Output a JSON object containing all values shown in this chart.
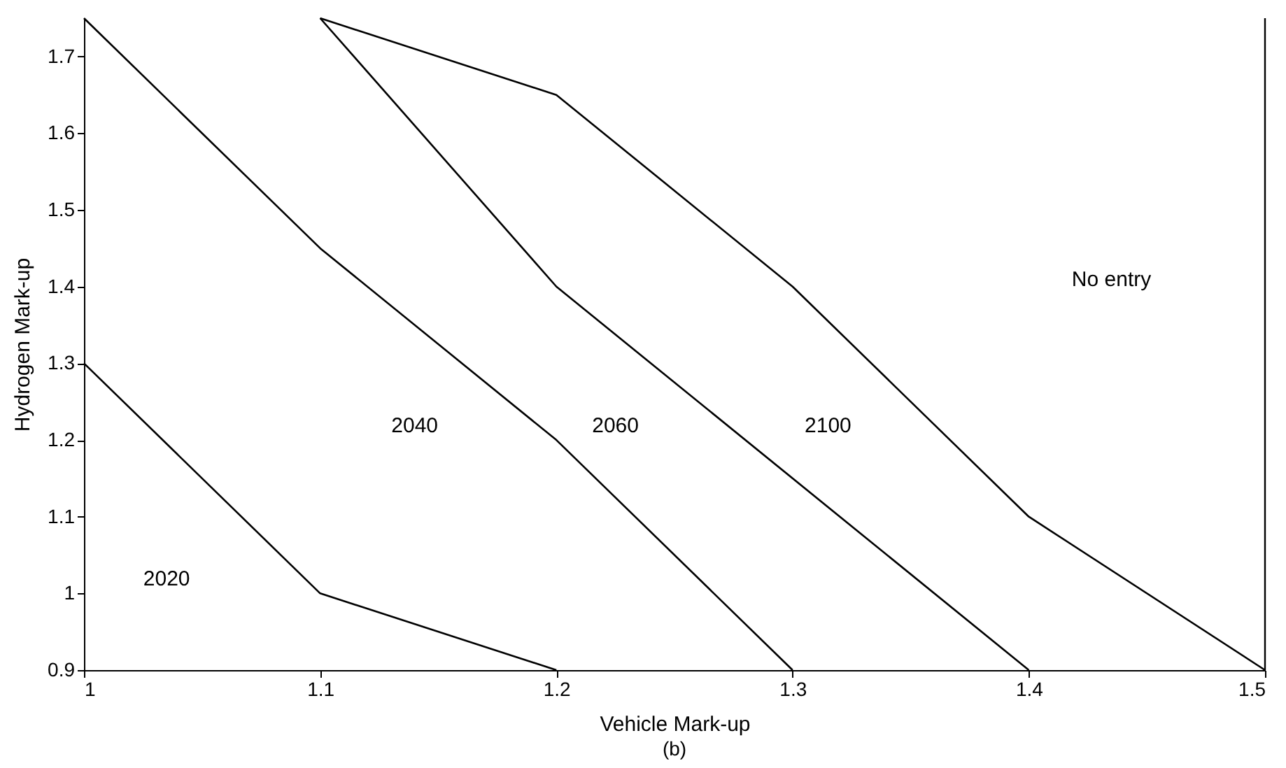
{
  "chart_data": {
    "type": "line",
    "xlabel": "Vehicle Mark-up",
    "ylabel": "Hydrogen Mark-up",
    "xlim": [
      1,
      1.5
    ],
    "xticks": [
      1,
      1.1,
      1.2,
      1.3,
      1.4,
      1.5
    ],
    "ylim": [
      0.9,
      1.75
    ],
    "yticks": [
      0.9,
      1,
      1.1,
      1.2,
      1.3,
      1.4,
      1.5,
      1.6,
      1.7
    ],
    "series": [
      {
        "color": "#000000",
        "x": [
          1,
          1.1,
          1.2
        ],
        "values": [
          1.3,
          1.0,
          0.9
        ]
      },
      {
        "color": "#000000",
        "x": [
          1,
          1.1,
          1.2,
          1.3
        ],
        "values": [
          1.75,
          1.45,
          1.2,
          0.9
        ]
      },
      {
        "color": "#000000",
        "x": [
          1.1,
          1.2,
          1.4
        ],
        "values": [
          1.75,
          1.4,
          0.9
        ]
      },
      {
        "color": "#000000",
        "x": [
          1.1,
          1.2,
          1.3,
          1.4,
          1.5
        ],
        "values": [
          1.75,
          1.65,
          1.4,
          1.1,
          0.9
        ]
      }
    ],
    "ref_lines": [
      {
        "axis": "x",
        "value": 1.5,
        "color": "#000000"
      }
    ],
    "annotations": [
      "2020",
      "2040",
      "2060",
      "2100",
      "No entry",
      "(b)"
    ],
    "grid": false,
    "marker": "none",
    "line_style": "solid"
  }
}
